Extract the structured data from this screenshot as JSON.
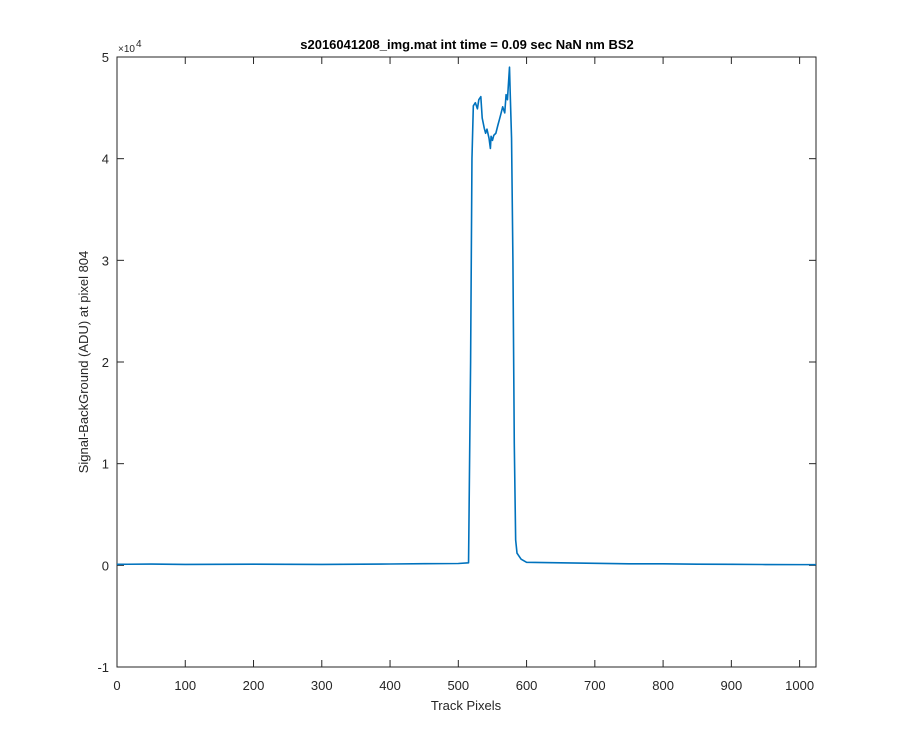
{
  "chart_data": {
    "type": "line",
    "title": "s2016041208_img.mat int time = 0.09 sec  NaN nm BS2",
    "xlabel": "Track Pixels",
    "ylabel": "Signal-BackGround (ADU) at pixel 804",
    "xlim": [
      0,
      1024
    ],
    "ylim": [
      -10000,
      50000
    ],
    "y_exponent_label": "×10",
    "y_exponent_power": "4",
    "xticks": [
      0,
      100,
      200,
      300,
      400,
      500,
      600,
      700,
      800,
      900,
      1000
    ],
    "yticks": [
      -1,
      0,
      1,
      2,
      3,
      4,
      5
    ],
    "line_color": "#0072bd",
    "grid": false,
    "x": [
      0,
      50,
      100,
      200,
      300,
      400,
      450,
      500,
      515,
      518,
      520,
      522,
      525,
      528,
      530,
      533,
      535,
      538,
      540,
      542,
      545,
      547,
      548,
      550,
      552,
      555,
      558,
      560,
      562,
      565,
      568,
      570,
      572,
      573,
      575,
      576,
      578,
      580,
      582,
      584,
      586,
      588,
      592,
      600,
      650,
      700,
      750,
      800,
      850,
      900,
      950,
      1000,
      1024
    ],
    "y": [
      100,
      120,
      90,
      110,
      90,
      130,
      160,
      180,
      250,
      20000,
      40000,
      45200,
      45500,
      44900,
      45800,
      46100,
      44000,
      43000,
      42500,
      42900,
      42000,
      41000,
      42200,
      41800,
      42300,
      42500,
      43300,
      43800,
      44300,
      45100,
      44500,
      46300,
      45800,
      46900,
      49000,
      46500,
      42000,
      30000,
      12000,
      2500,
      1200,
      1000,
      600,
      300,
      250,
      200,
      150,
      150,
      110,
      100,
      80,
      70,
      70
    ]
  }
}
